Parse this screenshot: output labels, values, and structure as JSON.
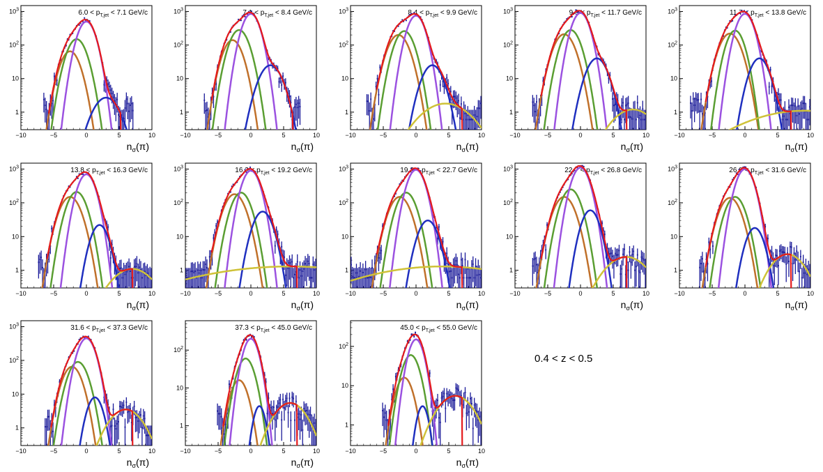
{
  "figure": {
    "z_label": "0.4 < z < 0.5",
    "colors": {
      "data": "#1a1a99",
      "total_fit": "#e41a1c",
      "pion": "#9b51e0",
      "kaon": "#5a9e32",
      "proton": "#c0702a",
      "electron": "#1f2fbf",
      "deuteron": "#cfc238"
    }
  },
  "chart_data": [
    {
      "type": "line",
      "title": "6.0 < p_{T,jet} < 7.1 GeV/c",
      "xlabel": "nσ(π)",
      "ylabel": "",
      "xlim": [
        -10,
        10
      ],
      "ylim": [
        0.3,
        1500
      ],
      "yscale": "log",
      "xticks": [
        -10,
        -5,
        0,
        5,
        10
      ],
      "yticks": [
        {
          "v": 1,
          "label": "1"
        },
        {
          "v": 10,
          "label": "10"
        },
        {
          "v": 100,
          "label": "10²"
        },
        {
          "v": 1000,
          "label": "10³"
        }
      ],
      "components": {
        "pion": {
          "amp": 500,
          "mean": 0.0,
          "sigma": 1.0
        },
        "kaon": {
          "amp": 150,
          "mean": -1.5,
          "sigma": 1.1
        },
        "proton": {
          "amp": 65,
          "mean": -2.5,
          "sigma": 1.1
        },
        "electron": {
          "amp": 2.7,
          "mean": 3.0,
          "sigma": 1.5
        },
        "deuteron": null
      }
    },
    {
      "type": "line",
      "title": "7.1 < p_{T,jet} < 8.4 GeV/c",
      "xlabel": "nσ(π)",
      "ylabel": "",
      "xlim": [
        -10,
        10
      ],
      "ylim": [
        0.3,
        1500
      ],
      "yscale": "log",
      "xticks": [
        -10,
        -5,
        0,
        5,
        10
      ],
      "yticks": [
        {
          "v": 1,
          "label": "1"
        },
        {
          "v": 10,
          "label": "10"
        },
        {
          "v": 100,
          "label": "10²"
        },
        {
          "v": 1000,
          "label": "10³"
        }
      ],
      "components": {
        "pion": {
          "amp": 850,
          "mean": 0.0,
          "sigma": 1.0
        },
        "kaon": {
          "amp": 280,
          "mean": -1.8,
          "sigma": 1.1
        },
        "proton": {
          "amp": 140,
          "mean": -2.8,
          "sigma": 1.1
        },
        "electron": {
          "amp": 25,
          "mean": 3.0,
          "sigma": 1.3
        },
        "deuteron": null
      }
    },
    {
      "type": "line",
      "title": "8.4 < p_{T,jet} < 9.9 GeV/c",
      "xlabel": "nσ(π)",
      "ylabel": "",
      "xlim": [
        -10,
        10
      ],
      "ylim": [
        0.3,
        1500
      ],
      "yscale": "log",
      "xticks": [
        -10,
        -5,
        0,
        5,
        10
      ],
      "yticks": [
        {
          "v": 1,
          "label": "1"
        },
        {
          "v": 10,
          "label": "10"
        },
        {
          "v": 100,
          "label": "10²"
        },
        {
          "v": 1000,
          "label": "10³"
        }
      ],
      "components": {
        "pion": {
          "amp": 750,
          "mean": 0.0,
          "sigma": 1.0
        },
        "kaon": {
          "amp": 260,
          "mean": -1.8,
          "sigma": 1.1
        },
        "proton": {
          "amp": 200,
          "mean": -2.7,
          "sigma": 1.2
        },
        "electron": {
          "amp": 25,
          "mean": 2.5,
          "sigma": 1.2
        },
        "deuteron": {
          "amp": 1.8,
          "mean": 4.5,
          "sigma": 3.0
        }
      }
    },
    {
      "type": "line",
      "title": "9.9 < p_{T,jet} < 11.7 GeV/c",
      "xlabel": "nσ(π)",
      "ylabel": "",
      "xlim": [
        -10,
        10
      ],
      "ylim": [
        0.3,
        1500
      ],
      "yscale": "log",
      "xticks": [
        -10,
        -5,
        0,
        5,
        10
      ],
      "yticks": [
        {
          "v": 1,
          "label": "1"
        },
        {
          "v": 10,
          "label": "10"
        },
        {
          "v": 100,
          "label": "10²"
        },
        {
          "v": 1000,
          "label": "10³"
        }
      ],
      "components": {
        "pion": {
          "amp": 900,
          "mean": 0.0,
          "sigma": 1.0
        },
        "kaon": {
          "amp": 280,
          "mean": -1.5,
          "sigma": 1.1
        },
        "proton": {
          "amp": 210,
          "mean": -2.5,
          "sigma": 1.2
        },
        "electron": {
          "amp": 40,
          "mean": 2.5,
          "sigma": 1.2
        },
        "deuteron": {
          "amp": 1.2,
          "mean": 8.0,
          "sigma": 2.5
        }
      }
    },
    {
      "type": "line",
      "title": "11.7 < p_{T,jet} < 13.8 GeV/c",
      "xlabel": "nσ(π)",
      "ylabel": "",
      "xlim": [
        -10,
        10
      ],
      "ylim": [
        0.3,
        1500
      ],
      "yscale": "log",
      "xticks": [
        -10,
        -5,
        0,
        5,
        10
      ],
      "yticks": [
        {
          "v": 1,
          "label": "1"
        },
        {
          "v": 10,
          "label": "10"
        },
        {
          "v": 100,
          "label": "10²"
        },
        {
          "v": 1000,
          "label": "10³"
        }
      ],
      "components": {
        "pion": {
          "amp": 850,
          "mean": 0.0,
          "sigma": 1.0
        },
        "kaon": {
          "amp": 270,
          "mean": -1.5,
          "sigma": 1.0
        },
        "proton": {
          "amp": 220,
          "mean": -2.3,
          "sigma": 1.2
        },
        "electron": {
          "amp": 40,
          "mean": 2.2,
          "sigma": 1.1
        },
        "deuteron": {
          "amp": 1.1,
          "mean": 9.0,
          "sigma": 7.0
        }
      }
    },
    {
      "type": "line",
      "title": "13.8 < p_{T,jet} < 16.3 GeV/c",
      "xlabel": "nσ(π)",
      "ylabel": "",
      "xlim": [
        -10,
        10
      ],
      "ylim": [
        0.3,
        1500
      ],
      "yscale": "log",
      "xticks": [
        -10,
        -5,
        0,
        5,
        10
      ],
      "yticks": [
        {
          "v": 1,
          "label": "1"
        },
        {
          "v": 10,
          "label": "10"
        },
        {
          "v": 100,
          "label": "10²"
        },
        {
          "v": 1000,
          "label": "10³"
        }
      ],
      "components": {
        "pion": {
          "amp": 700,
          "mean": 0.0,
          "sigma": 1.0
        },
        "kaon": {
          "amp": 210,
          "mean": -1.5,
          "sigma": 1.1
        },
        "proton": {
          "amp": 150,
          "mean": -2.5,
          "sigma": 1.2
        },
        "electron": {
          "amp": 22,
          "mean": 2.0,
          "sigma": 1.0
        },
        "deuteron": {
          "amp": 1.1,
          "mean": 7.0,
          "sigma": 2.5
        }
      }
    },
    {
      "type": "line",
      "title": "16.3 < p_{T,jet} < 19.2 GeV/c",
      "xlabel": "nσ(π)",
      "ylabel": "",
      "xlim": [
        -10,
        10
      ],
      "ylim": [
        0.3,
        1500
      ],
      "yscale": "log",
      "xticks": [
        -10,
        -5,
        0,
        5,
        10
      ],
      "yticks": [
        {
          "v": 1,
          "label": "1"
        },
        {
          "v": 10,
          "label": "10"
        },
        {
          "v": 100,
          "label": "10²"
        },
        {
          "v": 1000,
          "label": "10³"
        }
      ],
      "components": {
        "pion": {
          "amp": 900,
          "mean": 0.0,
          "sigma": 1.0
        },
        "kaon": {
          "amp": 200,
          "mean": -1.5,
          "sigma": 1.1
        },
        "proton": {
          "amp": 180,
          "mean": -2.5,
          "sigma": 1.2
        },
        "electron": {
          "amp": 55,
          "mean": 1.8,
          "sigma": 1.1
        },
        "deuteron": {
          "amp": 1.3,
          "mean": 6.0,
          "sigma": 12.0
        }
      }
    },
    {
      "type": "line",
      "title": "19.2 < p_{T,jet} < 22.7 GeV/c",
      "xlabel": "nσ(π)",
      "ylabel": "",
      "xlim": [
        -10,
        10
      ],
      "ylim": [
        0.3,
        1500
      ],
      "yscale": "log",
      "xticks": [
        -10,
        -5,
        0,
        5,
        10
      ],
      "yticks": [
        {
          "v": 1,
          "label": "1"
        },
        {
          "v": 10,
          "label": "10"
        },
        {
          "v": 100,
          "label": "10²"
        },
        {
          "v": 1000,
          "label": "10³"
        }
      ],
      "components": {
        "pion": {
          "amp": 950,
          "mean": 0.0,
          "sigma": 1.0
        },
        "kaon": {
          "amp": 200,
          "mean": -1.5,
          "sigma": 1.1
        },
        "proton": {
          "amp": 150,
          "mean": -2.5,
          "sigma": 1.2
        },
        "electron": {
          "amp": 30,
          "mean": 1.8,
          "sigma": 1.1
        },
        "deuteron": {
          "amp": 1.3,
          "mean": 4.0,
          "sigma": 10.0
        }
      }
    },
    {
      "type": "line",
      "title": "22.7 < p_{T,jet} < 26.8 GeV/c",
      "xlabel": "nσ(π)",
      "ylabel": "",
      "xlim": [
        -10,
        10
      ],
      "ylim": [
        0.3,
        1500
      ],
      "yscale": "log",
      "xticks": [
        -10,
        -5,
        0,
        5,
        10
      ],
      "yticks": [
        {
          "v": 1,
          "label": "1"
        },
        {
          "v": 10,
          "label": "10"
        },
        {
          "v": 100,
          "label": "10²"
        },
        {
          "v": 1000,
          "label": "10³"
        }
      ],
      "components": {
        "pion": {
          "amp": 1100,
          "mean": 0.0,
          "sigma": 1.0
        },
        "kaon": {
          "amp": 250,
          "mean": -1.5,
          "sigma": 1.1
        },
        "proton": {
          "amp": 150,
          "mean": -2.5,
          "sigma": 1.2
        },
        "electron": {
          "amp": 60,
          "mean": 1.5,
          "sigma": 1.0
        },
        "deuteron": {
          "amp": 2.5,
          "mean": 7.0,
          "sigma": 2.5
        }
      }
    },
    {
      "type": "line",
      "title": "26.8 < p_{T,jet} < 31.6 GeV/c",
      "xlabel": "nσ(π)",
      "ylabel": "",
      "xlim": [
        -10,
        10
      ],
      "ylim": [
        0.3,
        1500
      ],
      "yscale": "log",
      "xticks": [
        -10,
        -5,
        0,
        5,
        10
      ],
      "yticks": [
        {
          "v": 1,
          "label": "1"
        },
        {
          "v": 10,
          "label": "10"
        },
        {
          "v": 100,
          "label": "10²"
        },
        {
          "v": 1000,
          "label": "10³"
        }
      ],
      "components": {
        "pion": {
          "amp": 1000,
          "mean": 0.0,
          "sigma": 1.0
        },
        "kaon": {
          "amp": 150,
          "mean": -1.5,
          "sigma": 1.1
        },
        "proton": {
          "amp": 140,
          "mean": -2.3,
          "sigma": 1.2
        },
        "electron": {
          "amp": 18,
          "mean": 1.5,
          "sigma": 1.0
        },
        "deuteron": {
          "amp": 3.0,
          "mean": 6.5,
          "sigma": 2.0
        }
      }
    },
    {
      "type": "line",
      "title": "31.6 < p_{T,jet} < 37.3 GeV/c",
      "xlabel": "nσ(π)",
      "ylabel": "",
      "xlim": [
        -10,
        10
      ],
      "ylim": [
        0.3,
        1500
      ],
      "yscale": "log",
      "xticks": [
        -10,
        -5,
        0,
        5,
        10
      ],
      "yticks": [
        {
          "v": 1,
          "label": "1"
        },
        {
          "v": 10,
          "label": "10"
        },
        {
          "v": 100,
          "label": "10²"
        },
        {
          "v": 1000,
          "label": "10³"
        }
      ],
      "components": {
        "pion": {
          "amp": 450,
          "mean": 0.0,
          "sigma": 1.0
        },
        "kaon": {
          "amp": 90,
          "mean": -1.3,
          "sigma": 1.1
        },
        "proton": {
          "amp": 65,
          "mean": -2.2,
          "sigma": 1.1
        },
        "electron": {
          "amp": 8,
          "mean": 1.3,
          "sigma": 0.9
        },
        "deuteron": {
          "amp": 3.5,
          "mean": 6.0,
          "sigma": 2.0
        }
      }
    },
    {
      "type": "line",
      "title": "37.3 < p_{T,jet} < 45.0 GeV/c",
      "xlabel": "nσ(π)",
      "ylabel": "",
      "xlim": [
        -10,
        10
      ],
      "ylim": [
        0.3,
        600
      ],
      "yscale": "log",
      "xticks": [
        -10,
        -5,
        0,
        5,
        10
      ],
      "yticks": [
        {
          "v": 1,
          "label": "1"
        },
        {
          "v": 10,
          "label": "10"
        },
        {
          "v": 100,
          "label": "10²"
        }
      ],
      "components": {
        "pion": {
          "amp": 200,
          "mean": 0.0,
          "sigma": 0.9
        },
        "kaon": {
          "amp": 60,
          "mean": -0.8,
          "sigma": 1.0
        },
        "proton": {
          "amp": 16,
          "mean": -1.8,
          "sigma": 1.0
        },
        "electron": {
          "amp": 3.3,
          "mean": 1.3,
          "sigma": 0.7
        },
        "deuteron": {
          "amp": 4.0,
          "mean": 6.0,
          "sigma": 2.0
        }
      }
    },
    {
      "type": "line",
      "title": "45.0 < p_{T,jet} < 55.0 GeV/c",
      "xlabel": "nσ(π)",
      "ylabel": "",
      "xlim": [
        -10,
        10
      ],
      "ylim": [
        0.3,
        450
      ],
      "yscale": "log",
      "xticks": [
        -10,
        -5,
        0,
        5,
        10
      ],
      "yticks": [
        {
          "v": 1,
          "label": "1"
        },
        {
          "v": 10,
          "label": "10"
        },
        {
          "v": 100,
          "label": "10²"
        }
      ],
      "components": {
        "pion": {
          "amp": 150,
          "mean": 0.0,
          "sigma": 0.9
        },
        "kaon": {
          "amp": 60,
          "mean": -0.8,
          "sigma": 1.0
        },
        "proton": {
          "amp": 16,
          "mean": -1.8,
          "sigma": 1.0
        },
        "electron": {
          "amp": 3.0,
          "mean": 1.0,
          "sigma": 0.7
        },
        "deuteron": {
          "amp": 5.5,
          "mean": 6.0,
          "sigma": 2.2
        }
      }
    }
  ]
}
